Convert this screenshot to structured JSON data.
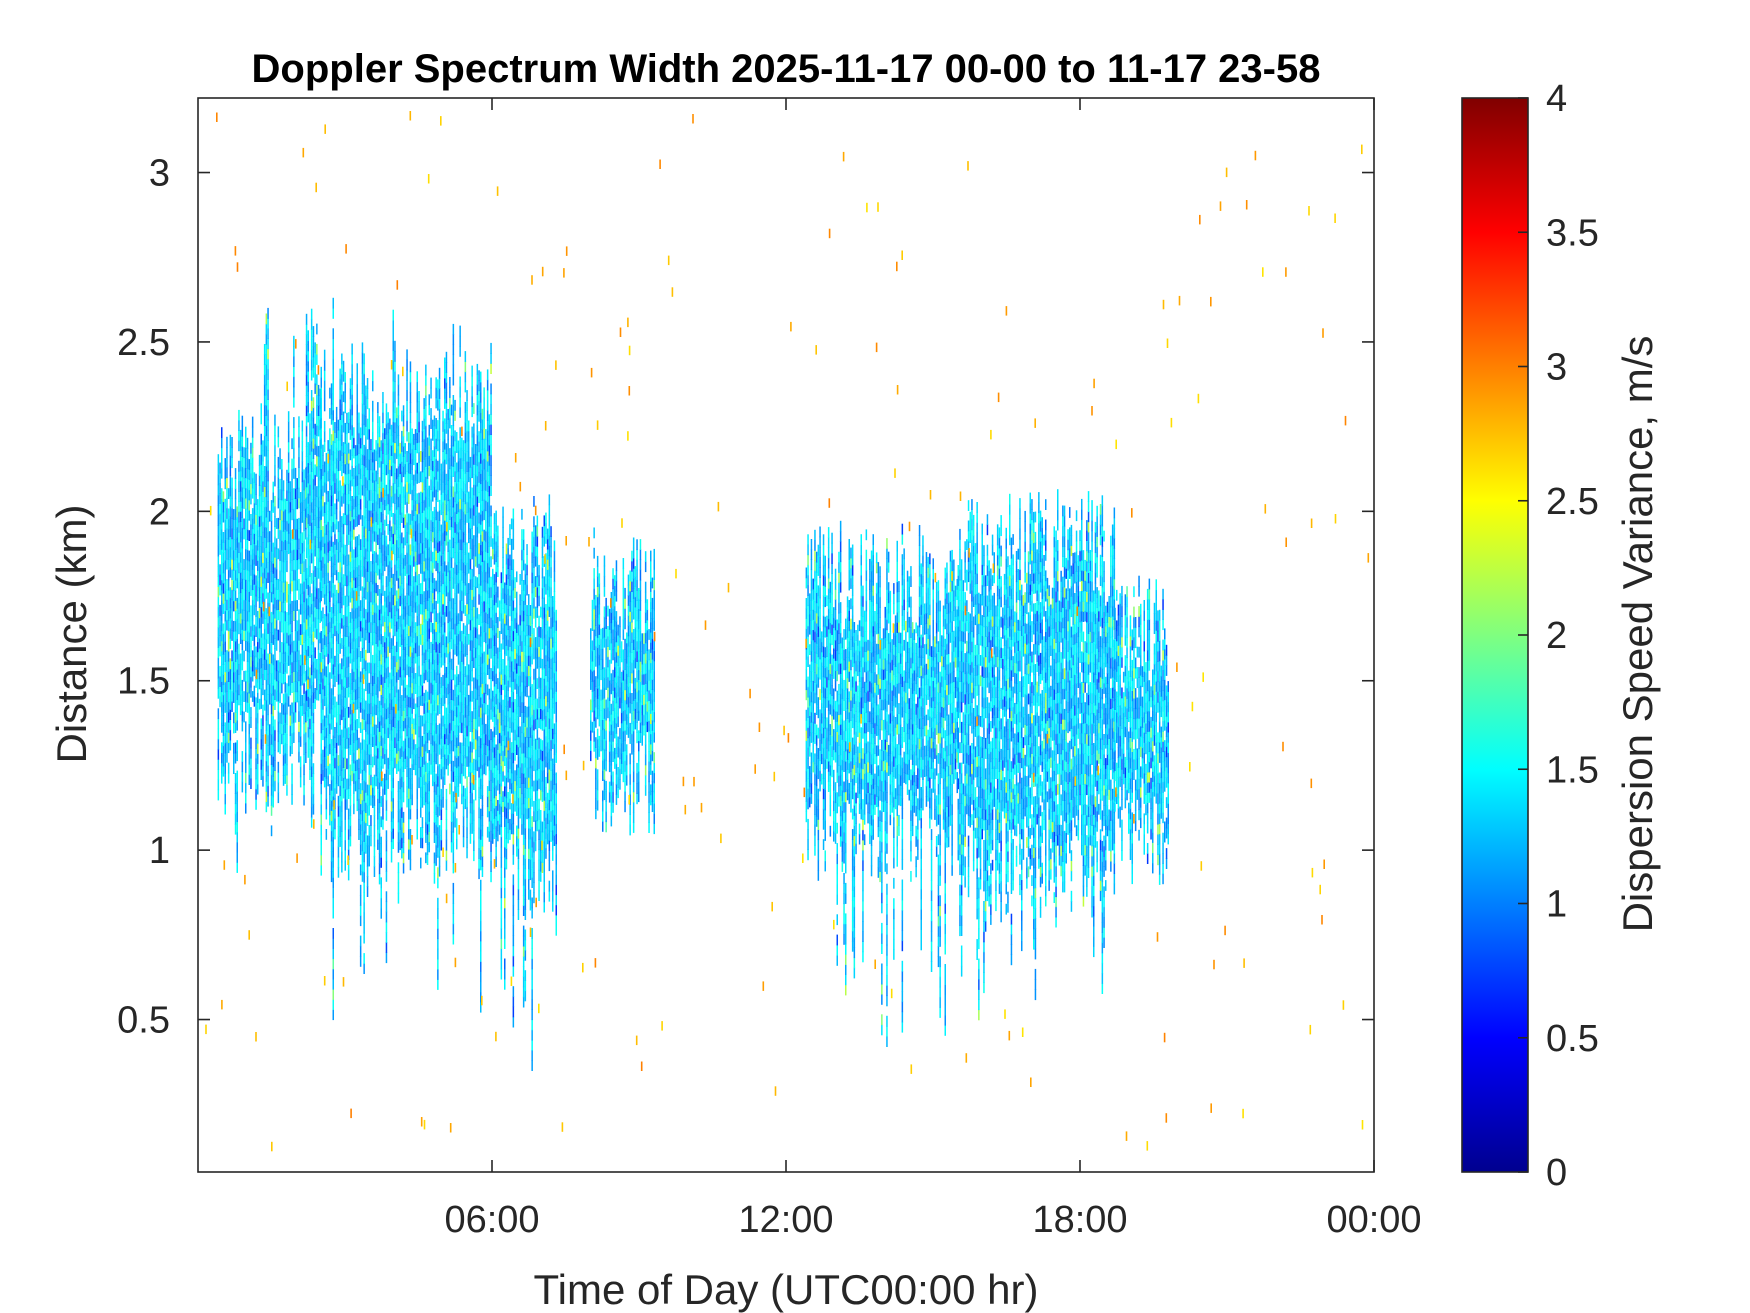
{
  "chart_data": {
    "type": "heatmap",
    "title": "Doppler Spectrum Width 2025-11-17 00-00 to 11-17 23-58",
    "xlabel": "Time of Day (UTC00:00 hr)",
    "ylabel": "Distance (km)",
    "xlim": [
      0,
      24
    ],
    "ylim": [
      0.05,
      3.22
    ],
    "x_ticks": [
      {
        "value": 6,
        "label": "06:00"
      },
      {
        "value": 12,
        "label": "12:00"
      },
      {
        "value": 18,
        "label": "18:00"
      },
      {
        "value": 24,
        "label": "00:00"
      }
    ],
    "y_ticks": [
      {
        "value": 0.5,
        "label": "0.5"
      },
      {
        "value": 1,
        "label": "1"
      },
      {
        "value": 1.5,
        "label": "1.5"
      },
      {
        "value": 2,
        "label": "2"
      },
      {
        "value": 2.5,
        "label": "2.5"
      },
      {
        "value": 3,
        "label": "3"
      }
    ],
    "colorbar": {
      "label": "Dispersion Speed Variance, m/s",
      "colormap": "jet",
      "range": [
        0,
        4
      ],
      "ticks": [
        "0",
        "0.5",
        "1",
        "1.5",
        "2",
        "2.5",
        "3",
        "3.5",
        "4"
      ]
    },
    "grid": false,
    "echo_regions": [
      {
        "t_start": 0.4,
        "t_end": 2.2,
        "base_km": 1.2,
        "top_km": 2.2,
        "peak_top_km": 2.6,
        "min_base_km": 0.9,
        "typical_value": 1.3
      },
      {
        "t_start": 2.2,
        "t_end": 2.5,
        "base_km": 1.25,
        "top_km": 2.5,
        "peak_top_km": 2.72,
        "min_base_km": 1.0,
        "typical_value": 1.3
      },
      {
        "t_start": 2.5,
        "t_end": 6.0,
        "base_km": 1.0,
        "top_km": 2.4,
        "peak_top_km": 2.68,
        "min_base_km": 0.42,
        "typical_value": 1.3
      },
      {
        "t_start": 6.0,
        "t_end": 7.3,
        "base_km": 0.9,
        "top_km": 1.9,
        "peak_top_km": 2.05,
        "min_base_km": 0.35,
        "typical_value": 1.3
      },
      {
        "t_start": 8.0,
        "t_end": 9.3,
        "base_km": 1.15,
        "top_km": 1.85,
        "peak_top_km": 1.95,
        "min_base_km": 0.95,
        "typical_value": 1.3
      },
      {
        "t_start": 12.4,
        "t_end": 15.5,
        "base_km": 1.0,
        "top_km": 1.85,
        "peak_top_km": 1.95,
        "min_base_km": 0.35,
        "typical_value": 1.3
      },
      {
        "t_start": 15.5,
        "t_end": 18.7,
        "base_km": 0.9,
        "top_km": 1.95,
        "peak_top_km": 2.05,
        "min_base_km": 0.45,
        "typical_value": 1.3
      },
      {
        "t_start": 18.7,
        "t_end": 19.8,
        "base_km": 1.0,
        "top_km": 1.7,
        "peak_top_km": 1.8,
        "min_base_km": 0.8,
        "typical_value": 1.3
      }
    ],
    "background_noise": {
      "value_range_ms": [
        2.6,
        3.0
      ],
      "description": "sparse isolated speckles"
    }
  }
}
